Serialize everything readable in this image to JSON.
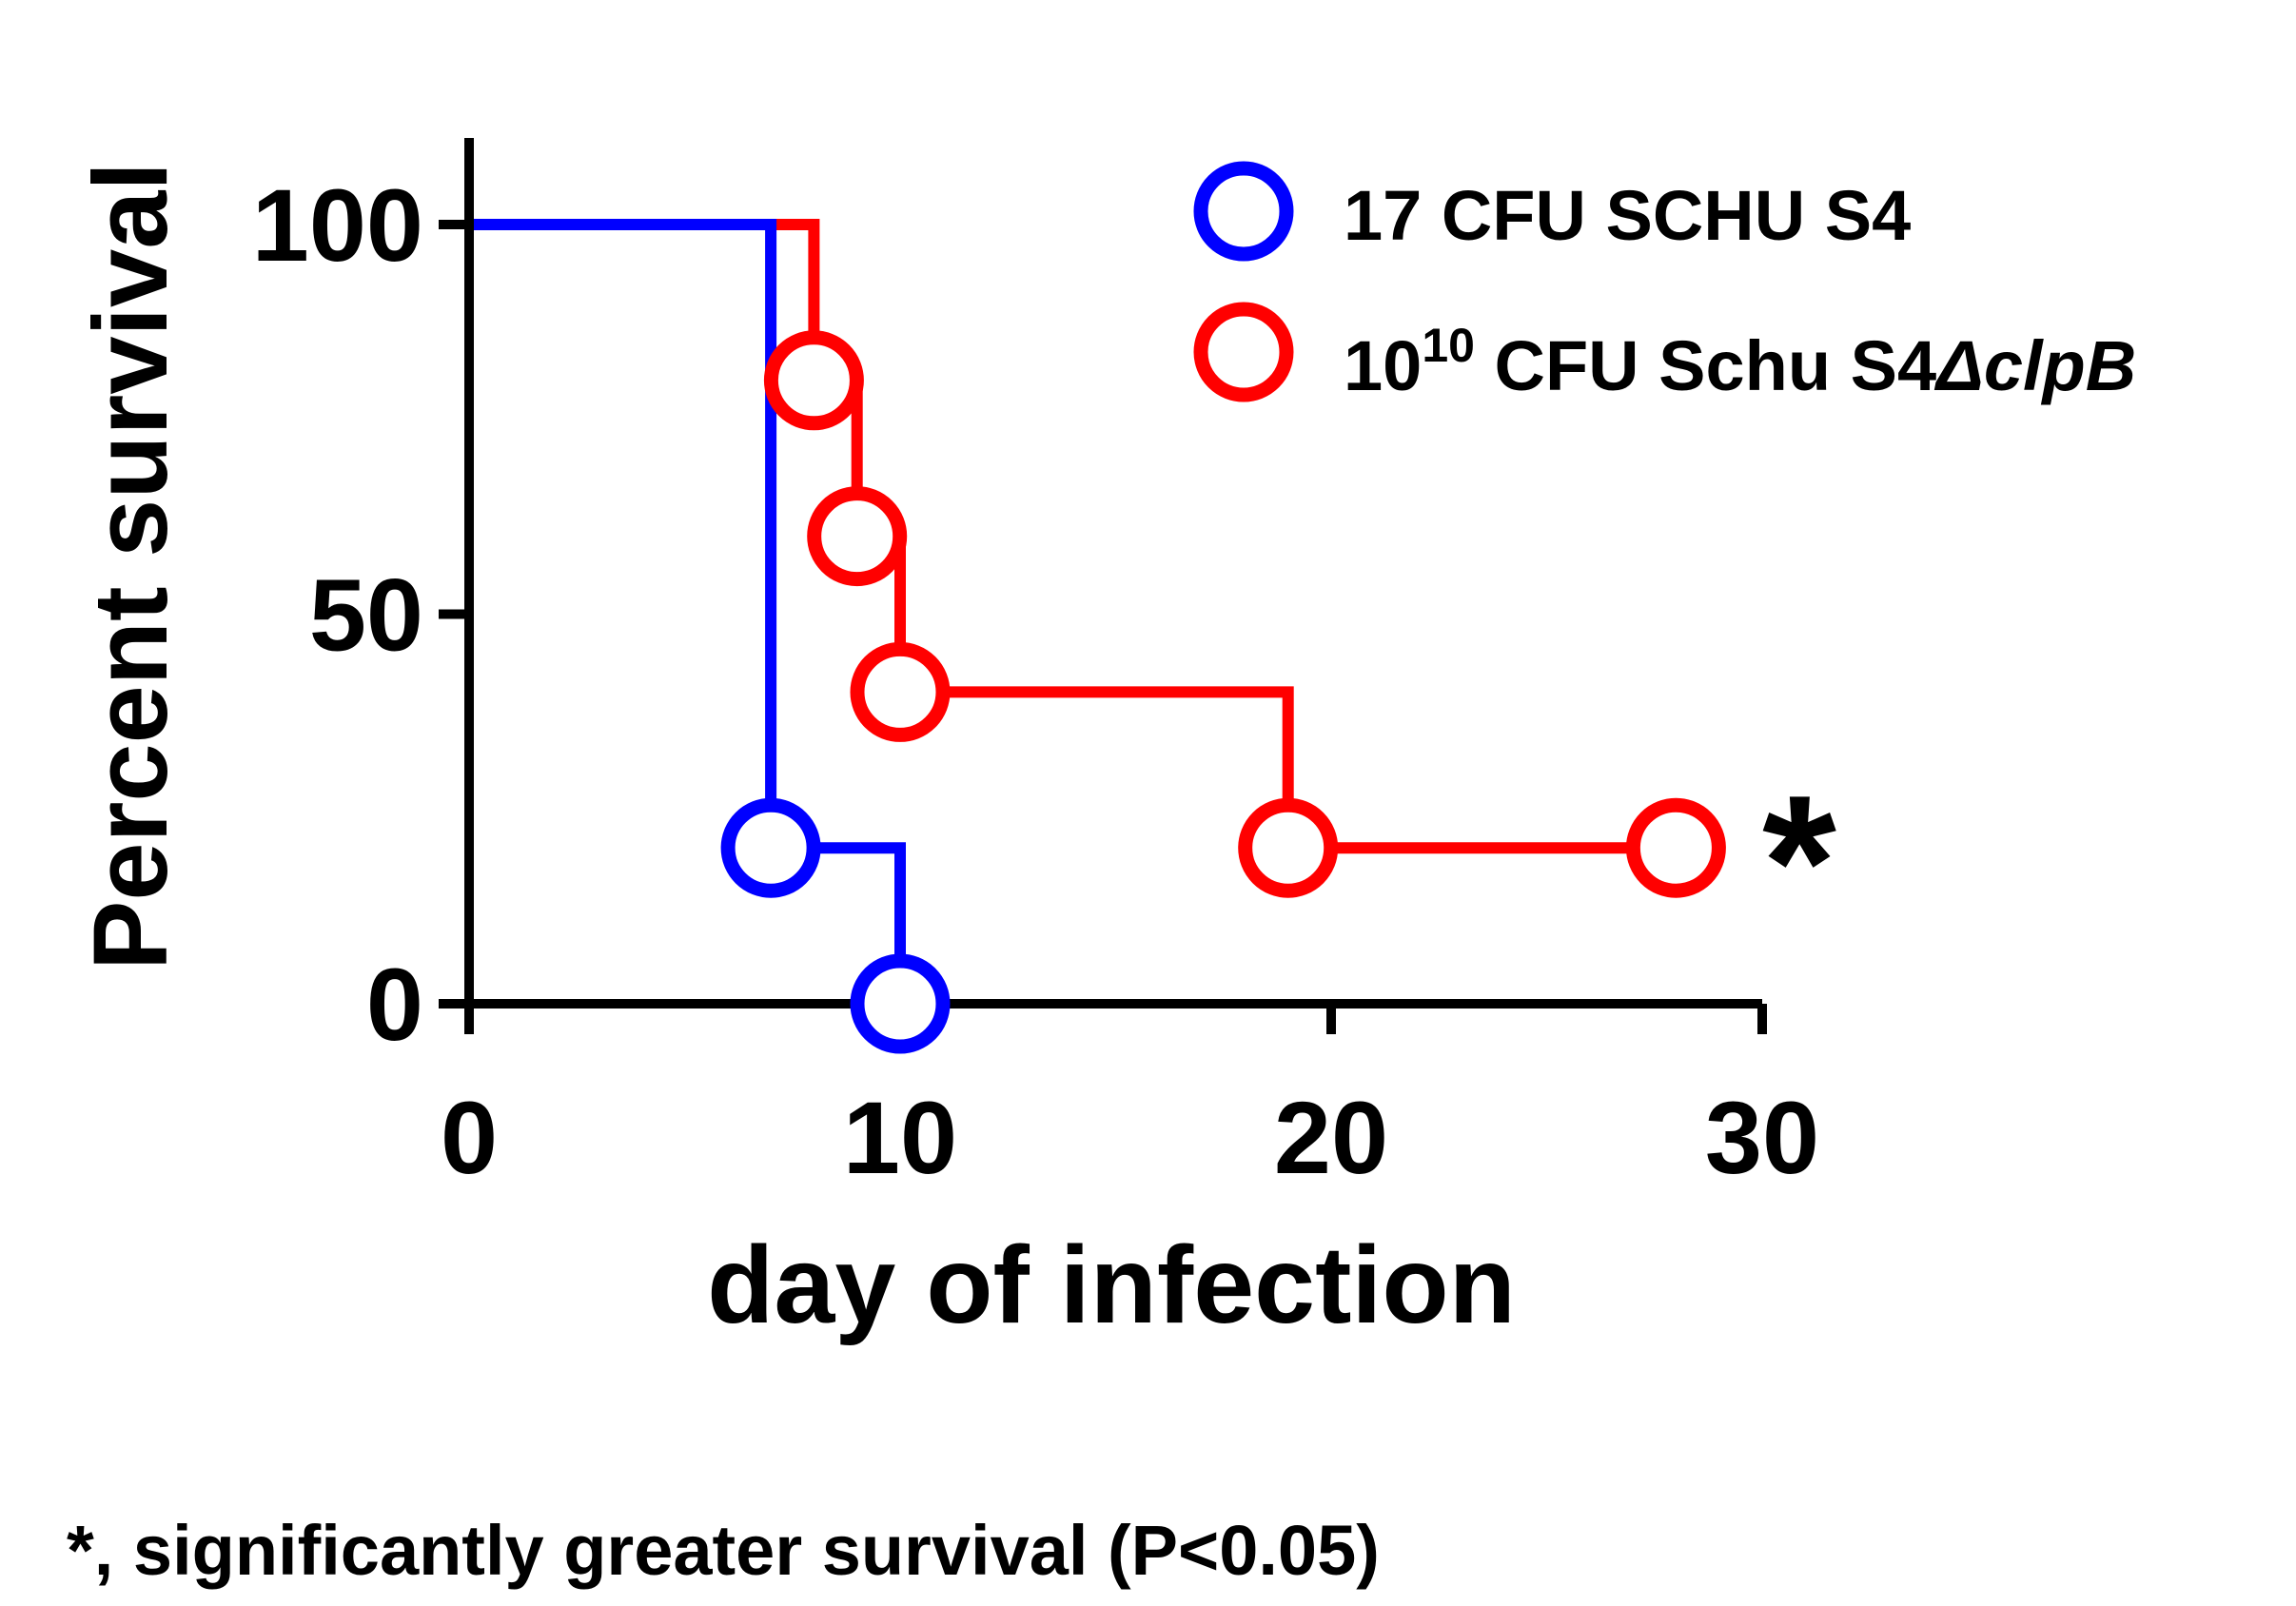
{
  "chart_data": {
    "type": "line",
    "step": true,
    "xlabel": "day of infection",
    "ylabel": "Percent survival",
    "xlim": [
      0,
      30
    ],
    "ylim": [
      0,
      100
    ],
    "x_ticks": [
      "0",
      "10",
      "20",
      "30"
    ],
    "y_ticks": [
      "0",
      "50",
      "100"
    ],
    "series": [
      {
        "name": "17 CFU SCHU S4",
        "color": "#0000ff",
        "x": [
          0,
          7,
          10
        ],
        "y": [
          100,
          20,
          0
        ],
        "markers": [
          [
            7,
            20
          ],
          [
            10,
            0
          ]
        ]
      },
      {
        "name_parts": {
          "base": "10",
          "sup": "10",
          "rest": " CFU Schu S4",
          "italic": "ΔclpB"
        },
        "color": "#ff0000",
        "x": [
          0,
          8,
          9,
          10,
          19,
          28
        ],
        "y": [
          100,
          80,
          60,
          40,
          20,
          20
        ],
        "markers": [
          [
            8,
            80
          ],
          [
            9,
            60
          ],
          [
            10,
            40
          ],
          [
            19,
            20
          ],
          [
            28,
            20
          ]
        ]
      }
    ],
    "legend": "top-right",
    "annotations": [
      {
        "text": "*",
        "target": "10^10 CFU Schu S4ΔclpB end"
      }
    ],
    "footnote": "*, significantly greater survival (P<0.05)"
  }
}
